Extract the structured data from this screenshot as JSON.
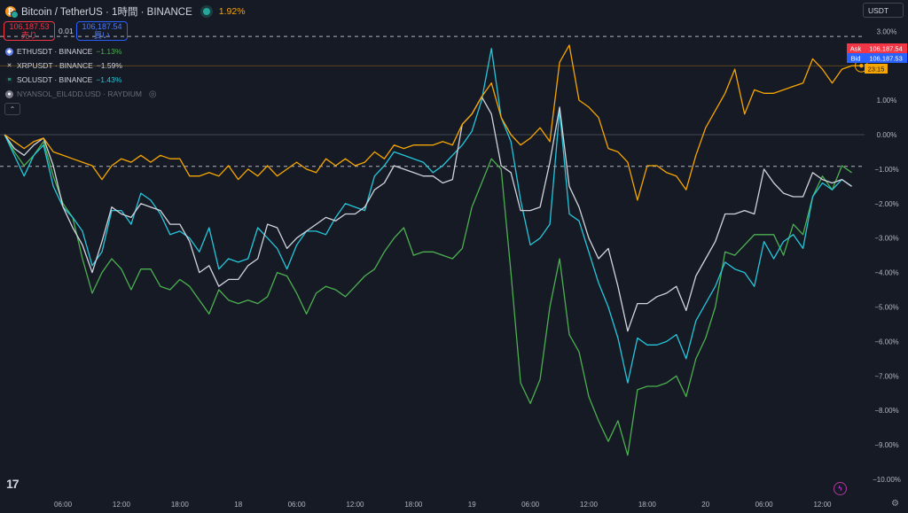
{
  "header": {
    "title": "Bitcoin / TetherUS · 1時間 · BINANCE",
    "change": "1.92%"
  },
  "trade": {
    "sell_price": "106,187.53",
    "sell_label": "売り",
    "spread": "0.01",
    "buy_price": "106,187.54",
    "buy_label": "買い"
  },
  "legend": [
    {
      "symbol": "ETHUSDT · BINANCE",
      "change": "−1.13%",
      "color": "#4caf50",
      "icon_color": "#627eea"
    },
    {
      "symbol": "XRPUSDT · BINANCE",
      "change": "−1.59%",
      "color": "#d1d4dc",
      "icon_color": "#23292f"
    },
    {
      "symbol": "SOLUSDT · BINANCE",
      "change": "−1.43%",
      "color": "#26c6da",
      "icon_color": "#14f195"
    },
    {
      "symbol": "NYANSOL_EIL4DD.USD · RAYDIUM",
      "change": "",
      "color": "#6a6d78",
      "icon_color": "#787b86"
    }
  ],
  "currency": "USDT",
  "price_tags": {
    "ask_label": "Ask",
    "ask_value": "106,187.54",
    "bid_label": "Bid",
    "bid_value": "106,187.53",
    "countdown": "23:15"
  },
  "colors": {
    "btc": "#f7a600",
    "eth": "#4caf50",
    "xrp": "#d1d4dc",
    "sol": "#26c6da",
    "background": "#161a25"
  },
  "chart_data": {
    "type": "line",
    "y_unit": "%",
    "y_ticks": [
      "3.00%",
      "1.00%",
      "0.00%",
      "−1.00%",
      "−2.00%",
      "−3.00%",
      "−4.00%",
      "−5.00%",
      "−6.00%",
      "−7.00%",
      "−8.00%",
      "−9.00%",
      "−10.00%"
    ],
    "y_tick_values": [
      3,
      1,
      0,
      -1,
      -2,
      -3,
      -4,
      -5,
      -6,
      -7,
      -8,
      -9,
      -10
    ],
    "ylim": [
      -10.4,
      3.8
    ],
    "x_ticks": [
      "06:00",
      "12:00",
      "18:00",
      "18",
      "06:00",
      "12:00",
      "18:00",
      "19",
      "06:00",
      "12:00",
      "18:00",
      "20",
      "06:00",
      "12:00"
    ],
    "x_tick_hours": [
      6,
      12,
      18,
      24,
      30,
      36,
      42,
      48,
      54,
      60,
      66,
      72,
      78,
      84
    ],
    "xlim": [
      0,
      89
    ],
    "x_step_hours": 1,
    "reference_lines": [
      2.85,
      -0.92
    ],
    "zero_line": 0,
    "series": [
      {
        "key": "btc",
        "values": [
          0.0,
          -0.2,
          -0.4,
          -0.2,
          -0.1,
          -0.5,
          -0.6,
          -0.7,
          -0.8,
          -0.9,
          -1.3,
          -0.9,
          -0.7,
          -0.8,
          -0.6,
          -0.8,
          -0.6,
          -0.7,
          -0.7,
          -1.2,
          -1.2,
          -1.1,
          -1.2,
          -0.9,
          -1.3,
          -1.0,
          -1.2,
          -0.9,
          -1.2,
          -1.0,
          -0.8,
          -1.0,
          -1.1,
          -0.7,
          -0.9,
          -0.7,
          -0.9,
          -0.8,
          -0.5,
          -0.7,
          -0.3,
          -0.4,
          -0.3,
          -0.3,
          -0.3,
          -0.2,
          -0.3,
          0.3,
          0.6,
          1.1,
          1.5,
          0.5,
          0.0,
          -0.3,
          -0.1,
          0.2,
          -0.2,
          2.1,
          2.6,
          1.0,
          0.8,
          0.5,
          -0.4,
          -0.5,
          -0.8,
          -1.9,
          -0.9,
          -0.9,
          -1.1,
          -1.2,
          -1.6,
          -0.6,
          0.2,
          0.7,
          1.2,
          1.9,
          0.6,
          1.3,
          1.2,
          1.2,
          1.3,
          1.4,
          1.5,
          2.2,
          1.9,
          1.5,
          1.9,
          2.0,
          2.0
        ]
      },
      {
        "key": "eth",
        "values": [
          0.0,
          -0.5,
          -0.9,
          -0.6,
          -0.2,
          -1.2,
          -2.0,
          -2.4,
          -3.6,
          -4.6,
          -4.0,
          -3.6,
          -3.9,
          -4.5,
          -3.9,
          -3.9,
          -4.4,
          -4.5,
          -4.2,
          -4.4,
          -4.8,
          -5.2,
          -4.5,
          -4.8,
          -4.9,
          -4.8,
          -4.9,
          -4.7,
          -4.0,
          -4.1,
          -4.6,
          -5.2,
          -4.6,
          -4.4,
          -4.5,
          -4.7,
          -4.4,
          -4.1,
          -3.9,
          -3.4,
          -3.0,
          -2.7,
          -3.5,
          -3.4,
          -3.4,
          -3.5,
          -3.6,
          -3.3,
          -2.1,
          -1.4,
          -0.7,
          -1.0,
          -4.0,
          -7.2,
          -7.8,
          -7.1,
          -5.0,
          -3.6,
          -5.8,
          -6.3,
          -7.6,
          -8.3,
          -8.9,
          -8.3,
          -9.3,
          -7.4,
          -7.3,
          -7.3,
          -7.2,
          -7.0,
          -7.6,
          -6.5,
          -5.9,
          -5.0,
          -3.4,
          -3.5,
          -3.2,
          -2.9,
          -2.9,
          -2.9,
          -3.5,
          -2.6,
          -2.9,
          -1.8,
          -1.2,
          -1.6,
          -0.9,
          -1.1
        ]
      },
      {
        "key": "xrp",
        "values": [
          0.0,
          -0.4,
          -0.6,
          -0.3,
          -0.1,
          -0.9,
          -2.1,
          -2.7,
          -3.2,
          -4.0,
          -3.1,
          -2.1,
          -2.3,
          -2.4,
          -2.0,
          -2.1,
          -2.2,
          -2.6,
          -2.6,
          -3.1,
          -4.0,
          -3.8,
          -4.4,
          -4.2,
          -4.2,
          -3.8,
          -3.6,
          -2.6,
          -2.7,
          -3.3,
          -3.0,
          -2.8,
          -2.6,
          -2.4,
          -2.5,
          -2.3,
          -2.3,
          -2.1,
          -1.6,
          -1.4,
          -0.9,
          -1.0,
          -1.1,
          -1.2,
          -1.2,
          -1.4,
          -1.3,
          0.3,
          0.6,
          1.1,
          0.6,
          -0.9,
          -1.1,
          -2.2,
          -2.2,
          -2.1,
          -0.8,
          0.8,
          -1.5,
          -2.1,
          -3.0,
          -3.6,
          -3.3,
          -4.4,
          -5.7,
          -4.9,
          -4.9,
          -4.7,
          -4.6,
          -4.4,
          -5.1,
          -4.1,
          -3.6,
          -3.1,
          -2.3,
          -2.3,
          -2.2,
          -2.3,
          -1.0,
          -1.4,
          -1.7,
          -1.8,
          -1.8,
          -1.1,
          -1.3,
          -1.4,
          -1.3,
          -1.5
        ]
      },
      {
        "key": "sol",
        "values": [
          0.0,
          -0.6,
          -1.2,
          -0.6,
          -0.3,
          -1.5,
          -2.1,
          -2.4,
          -2.8,
          -3.8,
          -3.4,
          -2.2,
          -2.2,
          -2.6,
          -1.7,
          -1.9,
          -2.3,
          -2.9,
          -2.8,
          -3.0,
          -3.4,
          -2.7,
          -3.9,
          -3.6,
          -3.7,
          -3.6,
          -2.7,
          -3.0,
          -3.3,
          -3.9,
          -3.2,
          -2.8,
          -2.8,
          -2.9,
          -2.4,
          -2.0,
          -2.1,
          -2.2,
          -1.2,
          -0.9,
          -0.5,
          -0.6,
          -0.7,
          -0.8,
          -1.1,
          -0.9,
          -0.6,
          -0.3,
          0.1,
          1.0,
          2.5,
          0.5,
          -0.2,
          -1.9,
          -3.2,
          -3.0,
          -2.6,
          0.7,
          -2.3,
          -2.5,
          -3.4,
          -4.3,
          -5.0,
          -5.9,
          -7.2,
          -5.9,
          -6.1,
          -6.1,
          -6.0,
          -5.8,
          -6.5,
          -5.4,
          -4.9,
          -4.4,
          -3.7,
          -3.9,
          -4.0,
          -4.4,
          -3.1,
          -3.6,
          -3.1,
          -2.9,
          -3.3,
          -1.8,
          -1.4,
          -1.6,
          -1.3,
          -1.5
        ]
      }
    ]
  }
}
